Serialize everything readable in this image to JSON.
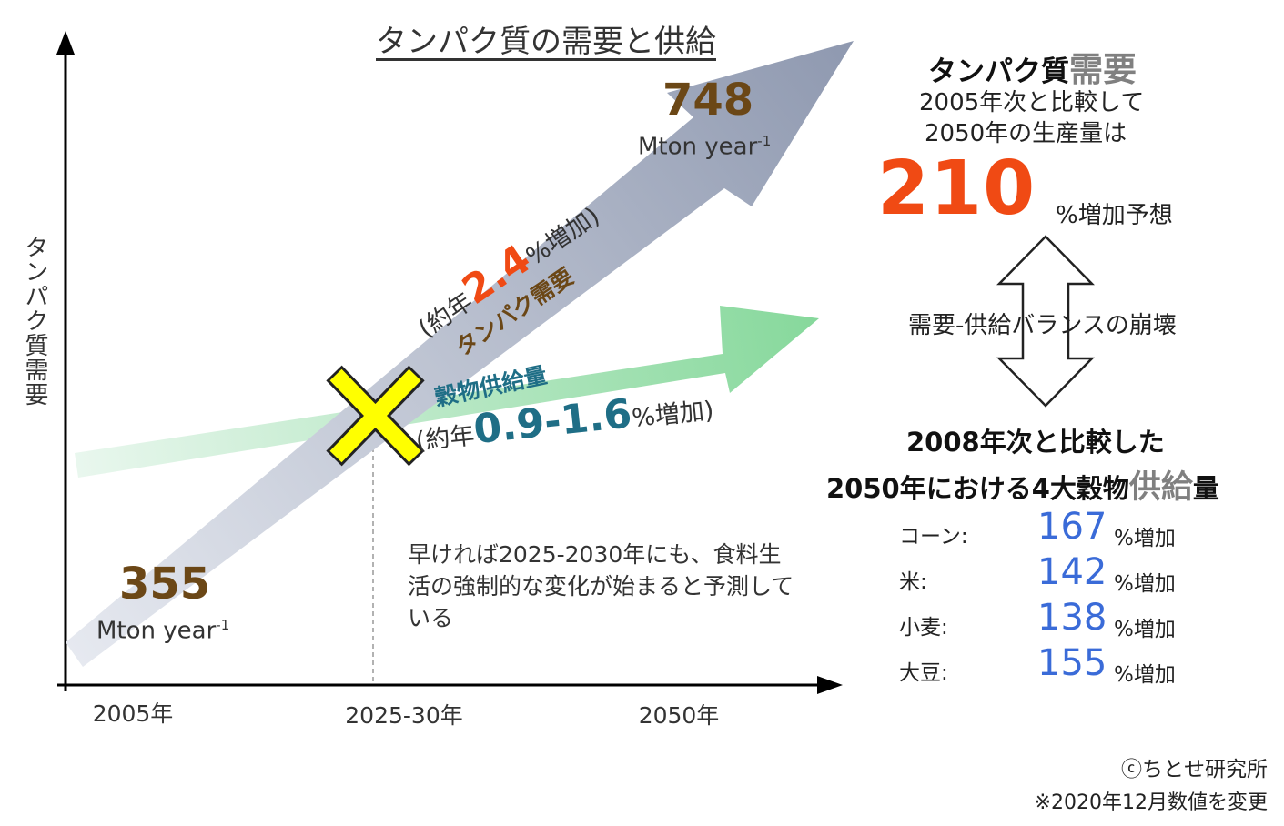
{
  "chart_data": {
    "type": "line",
    "title": "タンパク質の需要と供給",
    "ylabel": "タンパク質需要",
    "categories": [
      "2005年",
      "2025-30年",
      "2050年"
    ],
    "series": [
      {
        "name": "タンパク需要",
        "start_value": "355",
        "start_unit": "Mton year",
        "end_value": "748",
        "end_unit": "Mton year",
        "unit_sup": "-1",
        "growth_prefix": "(約年",
        "growth_rate": "2.4",
        "growth_suffix": "%増加)",
        "color": "#8f99b0"
      },
      {
        "name": "穀物供給量",
        "growth_prefix": "(約年",
        "growth_rate": "0.9-1.6",
        "growth_suffix": "%増加)",
        "color": "#8ed9a2"
      }
    ],
    "crossing_note": "早ければ2025-2030年にも、食料生活の強制的な変化が始まると予測している"
  },
  "right_panel": {
    "demand_title": "タンパク質",
    "demand_title_em": "需要",
    "demand_line1": "2005年次と比較して",
    "demand_line2": "2050年の生産量は",
    "demand_value": "210",
    "demand_unit": "%増加予想",
    "balance_text": "需要-供給バランスの崩壊",
    "supply_line1": "2008年次と比較した",
    "supply_line2_a": "2050年における4大穀物",
    "supply_line2_em": "供給",
    "supply_line2_b": "量",
    "crops": [
      {
        "label": "コーン:",
        "value": "167",
        "unit": "%増加"
      },
      {
        "label": "米:",
        "value": "142",
        "unit": "%増加"
      },
      {
        "label": "小麦:",
        "value": "138",
        "unit": "%増加"
      },
      {
        "label": "大豆:",
        "value": "155",
        "unit": "%増加"
      }
    ]
  },
  "footer": {
    "copyright": "ⓒちとせ研究所",
    "note": "※2020年12月数値を変更"
  },
  "colors": {
    "accent_orange": "#f04a14",
    "brown": "#6b4716",
    "teal": "#1f6e86",
    "blue_values": "#3a6bd8",
    "cross_yellow": "#ffff00"
  }
}
